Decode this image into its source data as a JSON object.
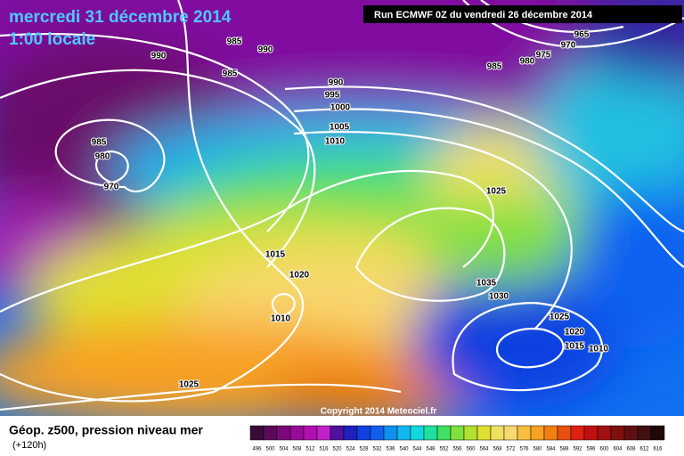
{
  "header": {
    "title": "mercredi 31 décembre 2014",
    "time": "1:00 locale",
    "run": "Run ECMWF 0Z du vendredi 26 décembre 2014"
  },
  "isobar_labels": [
    990,
    985,
    990,
    985,
    990,
    995,
    1000,
    1005,
    1010,
    985,
    980,
    970,
    1015,
    1020,
    1010,
    1025,
    1025,
    1035,
    1030,
    1025,
    1020,
    1015,
    1010,
    985,
    980,
    975,
    970,
    965
  ],
  "copyright": "Copyright 2014 Meteociel.fr",
  "legend": {
    "title": "Géop. z500, pression niveau mer",
    "subtitle": "(+120h)",
    "levels": [
      496,
      500,
      504,
      508,
      512,
      516,
      520,
      524,
      528,
      532,
      536,
      540,
      544,
      548,
      552,
      556,
      560,
      564,
      568,
      572,
      576,
      580,
      584,
      588,
      592,
      596,
      600,
      604,
      608,
      612,
      616
    ],
    "colors": [
      "#3a0a3a",
      "#5a0a5a",
      "#7a0a7a",
      "#980a98",
      "#b010b0",
      "#c020c8",
      "#5010a0",
      "#2020c0",
      "#1040e0",
      "#1060f0",
      "#1090f0",
      "#10b8f0",
      "#10d8e0",
      "#20e0a0",
      "#40e060",
      "#80e040",
      "#b0e030",
      "#e0e030",
      "#f0e060",
      "#f8d870",
      "#f8c040",
      "#f8a020",
      "#f08010",
      "#e85010",
      "#e02010",
      "#c01010",
      "#a01010",
      "#801010",
      "#601010",
      "#401010",
      "#200808"
    ]
  }
}
